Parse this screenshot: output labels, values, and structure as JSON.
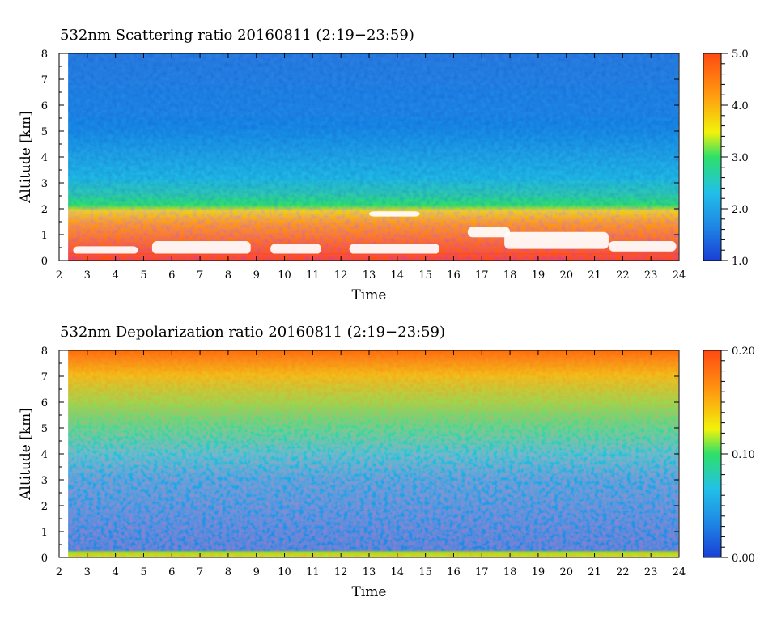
{
  "chart_data": [
    {
      "type": "heatmap",
      "title": "532nm Scattering ratio  20160811 (2:19−23:59)",
      "xlabel": "Time",
      "ylabel": "Altitude [km]",
      "xlim": [
        2,
        24
      ],
      "ylim": [
        0,
        8
      ],
      "x_ticks": [
        "2",
        "3",
        "4",
        "5",
        "6",
        "7",
        "8",
        "9",
        "10",
        "11",
        "12",
        "13",
        "14",
        "15",
        "16",
        "17",
        "18",
        "19",
        "20",
        "21",
        "22",
        "23",
        "24"
      ],
      "y_ticks": [
        "0",
        "1",
        "2",
        "3",
        "4",
        "5",
        "6",
        "7",
        "8"
      ],
      "data_time_range": [
        2.32,
        23.98
      ],
      "colorbar": {
        "range": [
          1.0,
          5.0
        ],
        "tick_labels": [
          "1.0",
          "2.0",
          "3.0",
          "4.0",
          "5.0"
        ],
        "tick_values": [
          1.0,
          2.0,
          3.0,
          4.0,
          5.0
        ],
        "colormap": [
          "#1a3fd6",
          "#1e88e5",
          "#22c0e8",
          "#2ee06a",
          "#f2f20a",
          "#ff9a10",
          "#ff4a12"
        ]
      },
      "description_layers": [
        {
          "alt_range": [
            0.3,
            2.2
          ],
          "value_approx": 4.5
        },
        {
          "alt_range": [
            2.2,
            2.7
          ],
          "value_approx": 3.0
        },
        {
          "alt_range": [
            2.7,
            8.0
          ],
          "value_approx": 1.8
        }
      ]
    },
    {
      "type": "heatmap",
      "title": "532nm Depolarization ratio  20160811 (2:19−23:59)",
      "xlabel": "Time",
      "ylabel": "Altitude [km]",
      "xlim": [
        2,
        24
      ],
      "ylim": [
        0,
        8
      ],
      "x_ticks": [
        "2",
        "3",
        "4",
        "5",
        "6",
        "7",
        "8",
        "9",
        "10",
        "11",
        "12",
        "13",
        "14",
        "15",
        "16",
        "17",
        "18",
        "19",
        "20",
        "21",
        "22",
        "23",
        "24"
      ],
      "y_ticks": [
        "0",
        "1",
        "2",
        "3",
        "4",
        "5",
        "6",
        "7",
        "8"
      ],
      "data_time_range": [
        2.32,
        23.98
      ],
      "colorbar": {
        "range": [
          0.0,
          0.2
        ],
        "tick_labels": [
          "0.00",
          "0.10",
          "0.20"
        ],
        "tick_values": [
          0.0,
          0.1,
          0.2
        ],
        "colormap": [
          "#1a3fd6",
          "#1e88e5",
          "#22c0e8",
          "#2ee06a",
          "#f2f20a",
          "#ff9a10",
          "#ff4a12"
        ]
      },
      "description_layers": [
        {
          "alt_range": [
            0.0,
            0.2
          ],
          "value_approx": 0.13
        },
        {
          "alt_range": [
            0.2,
            3.0
          ],
          "value_approx": 0.02
        },
        {
          "alt_range": [
            3.0,
            5.0
          ],
          "value_approx": 0.07
        },
        {
          "alt_range": [
            5.0,
            8.0
          ],
          "value_approx": 0.14
        }
      ]
    }
  ]
}
